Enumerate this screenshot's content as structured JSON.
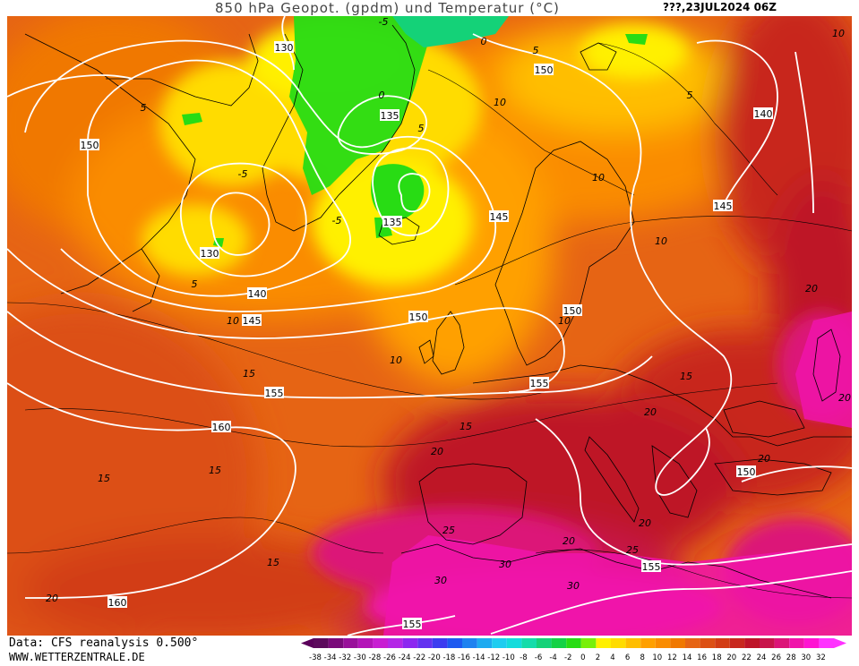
{
  "header": {
    "title": "850 hPa Geopot. (gpdm) und Temperatur (°C)",
    "date": "???,23JUL2024 06Z"
  },
  "footer": {
    "data_source": "Data: CFS reanalysis 0.500°",
    "website": "WWW.WETTERZENTRALE.DE"
  },
  "legend": {
    "min_arrow_color": "#5a005a",
    "max_arrow_color": "#ff33ff",
    "bins": [
      {
        "label": "-38",
        "color": "#5c0a5c"
      },
      {
        "label": "-34",
        "color": "#7a0a7a"
      },
      {
        "label": "-32",
        "color": "#99109a"
      },
      {
        "label": "-30",
        "color": "#b414b8"
      },
      {
        "label": "-28",
        "color": "#c81ed2"
      },
      {
        "label": "-26",
        "color": "#b428e6"
      },
      {
        "label": "-24",
        "color": "#8c28f0"
      },
      {
        "label": "-22",
        "color": "#6432f0"
      },
      {
        "label": "-20",
        "color": "#3c3cf0"
      },
      {
        "label": "-18",
        "color": "#1e5af0"
      },
      {
        "label": "-16",
        "color": "#1e82f0"
      },
      {
        "label": "-14",
        "color": "#1eaaf0"
      },
      {
        "label": "-12",
        "color": "#1ecdf0"
      },
      {
        "label": "-10",
        "color": "#14dcdc"
      },
      {
        "label": "-8",
        "color": "#14dcaa"
      },
      {
        "label": "-6",
        "color": "#14d278"
      },
      {
        "label": "-4",
        "color": "#14d246"
      },
      {
        "label": "-2",
        "color": "#28dc14"
      },
      {
        "label": "0",
        "color": "#78f00a"
      },
      {
        "label": "2",
        "color": "#fff000"
      },
      {
        "label": "4",
        "color": "#ffdc00"
      },
      {
        "label": "6",
        "color": "#ffbe00"
      },
      {
        "label": "8",
        "color": "#ffa000"
      },
      {
        "label": "10",
        "color": "#fa8c00"
      },
      {
        "label": "12",
        "color": "#f07800"
      },
      {
        "label": "14",
        "color": "#e66414"
      },
      {
        "label": "16",
        "color": "#dc5014"
      },
      {
        "label": "18",
        "color": "#d23c14"
      },
      {
        "label": "20",
        "color": "#c8281e"
      },
      {
        "label": "22",
        "color": "#be1428"
      },
      {
        "label": "24",
        "color": "#c8144b"
      },
      {
        "label": "26",
        "color": "#dc1478"
      },
      {
        "label": "28",
        "color": "#f014aa"
      },
      {
        "label": "30",
        "color": "#ff14d2"
      },
      {
        "label": "32",
        "color": "#ff32ff"
      }
    ]
  },
  "map": {
    "geopotential_labels": [
      "130",
      "150",
      "140",
      "135",
      "145",
      "130",
      "140",
      "145",
      "150",
      "135",
      "145",
      "150",
      "155",
      "155",
      "160",
      "150",
      "150",
      "160",
      "155",
      "155"
    ],
    "temperature_labels": [
      "-5",
      "0",
      "0",
      "5",
      "5",
      "5",
      "-5",
      "-5",
      "5",
      "10",
      "10",
      "10",
      "10",
      "5",
      "10",
      "10",
      "10",
      "15",
      "15",
      "15",
      "15",
      "15",
      "20",
      "20",
      "20",
      "20",
      "20",
      "20",
      "25",
      "25",
      "30",
      "30",
      "30",
      "20",
      "15",
      "20"
    ]
  }
}
